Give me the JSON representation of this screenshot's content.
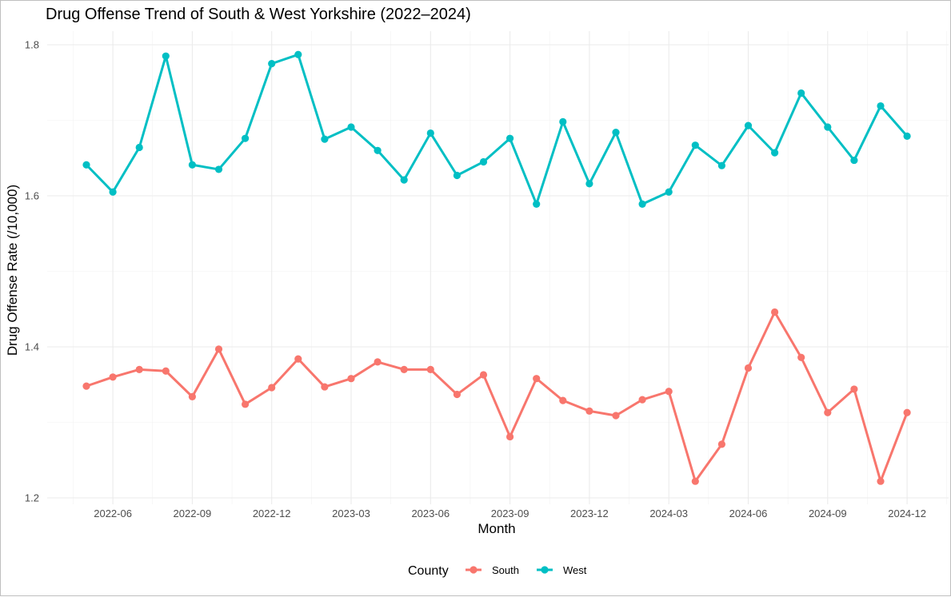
{
  "chart_data": {
    "type": "line",
    "title": "Drug Offense Trend of South & West Yorkshire (2022–2024)",
    "xlabel": "Month",
    "ylabel": "Drug Offense Rate (/10,000)",
    "ylim": [
      1.2,
      1.8
    ],
    "y_ticks": [
      "1.2",
      "1.4",
      "1.6",
      "1.8"
    ],
    "x_ticks": [
      "2022-06",
      "2022-09",
      "2022-12",
      "2023-03",
      "2023-06",
      "2023-09",
      "2023-12",
      "2024-03",
      "2024-06",
      "2024-09",
      "2024-12"
    ],
    "x": [
      "2022-05",
      "2022-06",
      "2022-07",
      "2022-08",
      "2022-09",
      "2022-10",
      "2022-11",
      "2022-12",
      "2023-01",
      "2023-02",
      "2023-03",
      "2023-04",
      "2023-05",
      "2023-06",
      "2023-07",
      "2023-08",
      "2023-09",
      "2023-10",
      "2023-11",
      "2023-12",
      "2024-01",
      "2024-02",
      "2024-03",
      "2024-04",
      "2024-05",
      "2024-06",
      "2024-07",
      "2024-08",
      "2024-09",
      "2024-10",
      "2024-11",
      "2024-12"
    ],
    "legend": {
      "title": "County",
      "position": "bottom"
    },
    "grid": true,
    "series": [
      {
        "name": "South",
        "color": "#F8766D",
        "values": [
          1.348,
          1.36,
          1.37,
          1.368,
          1.334,
          1.397,
          1.324,
          1.346,
          1.384,
          1.347,
          1.358,
          1.38,
          1.37,
          1.37,
          1.337,
          1.363,
          1.281,
          1.358,
          1.329,
          1.315,
          1.309,
          1.33,
          1.341,
          1.222,
          1.271,
          1.372,
          1.446,
          1.386,
          1.313,
          1.344,
          1.222,
          1.313
        ]
      },
      {
        "name": "West",
        "color": "#00BFC4",
        "values": [
          1.641,
          1.605,
          1.664,
          1.785,
          1.641,
          1.635,
          1.676,
          1.775,
          1.787,
          1.675,
          1.691,
          1.66,
          1.621,
          1.683,
          1.627,
          1.645,
          1.676,
          1.589,
          1.698,
          1.616,
          1.684,
          1.589,
          1.605,
          1.667,
          1.64,
          1.693,
          1.657,
          1.736,
          1.691,
          1.647,
          1.719,
          1.679
        ]
      }
    ]
  }
}
